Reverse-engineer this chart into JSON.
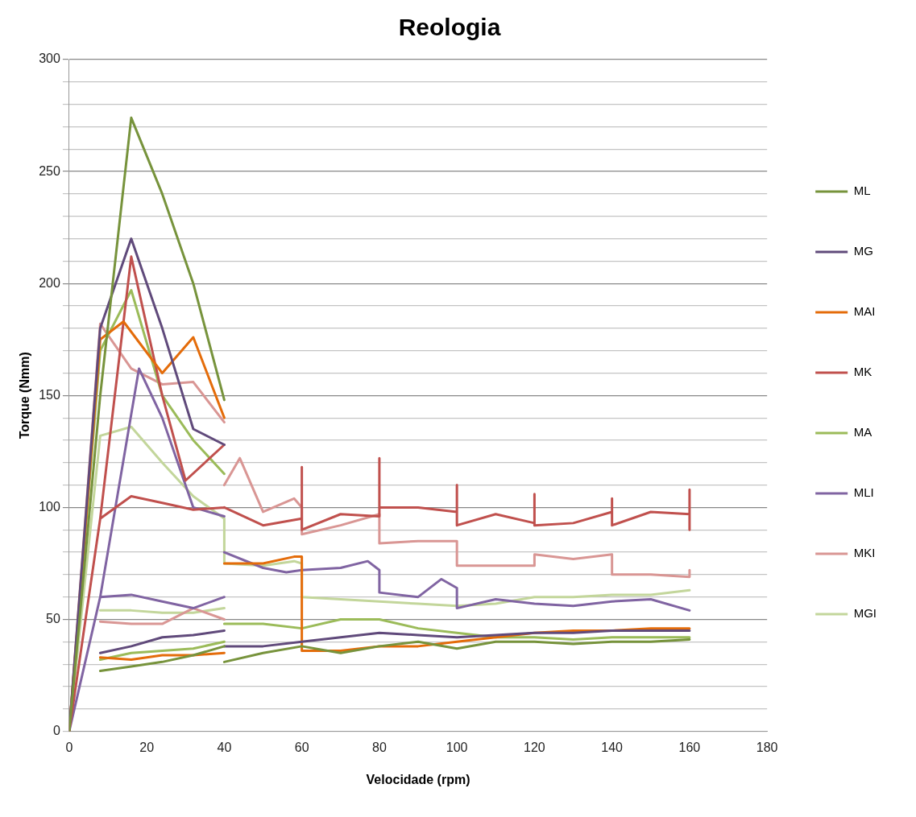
{
  "chart_data": {
    "type": "line",
    "title": "Reologia",
    "xlabel": "Velocidade (rpm)",
    "ylabel": "Torque (Nmm)",
    "xlim": [
      0,
      180
    ],
    "xticks": [
      0,
      20,
      40,
      60,
      80,
      100,
      120,
      140,
      160,
      180
    ],
    "ylim": [
      0,
      300
    ],
    "yticks": [
      0,
      {
        "value": 10,
        "label": null
      },
      {
        "value": 20,
        "label": null
      },
      {
        "value": 30,
        "label": null
      },
      {
        "value": 40,
        "label": null
      },
      50,
      {
        "value": 60,
        "label": null
      },
      {
        "value": 70,
        "label": null
      },
      {
        "value": 80,
        "label": null
      },
      {
        "value": 90,
        "label": null
      },
      100,
      {
        "value": 110,
        "label": null
      },
      {
        "value": 120,
        "label": null
      },
      {
        "value": 130,
        "label": null
      },
      {
        "value": 140,
        "label": null
      },
      150,
      {
        "value": 160,
        "label": null
      },
      {
        "value": 170,
        "label": null
      },
      {
        "value": 180,
        "label": null
      },
      {
        "value": 190,
        "label": null
      },
      200,
      {
        "value": 210,
        "label": null
      },
      {
        "value": 220,
        "label": null
      },
      {
        "value": 230,
        "label": null
      },
      {
        "value": 240,
        "label": null
      },
      250,
      {
        "value": 260,
        "label": null
      },
      {
        "value": 270,
        "label": null
      },
      {
        "value": 280,
        "label": null
      },
      {
        "value": 290,
        "label": null
      },
      300
    ],
    "grid": "y",
    "legend": "right",
    "marker": "none",
    "line_style": "solid",
    "series": [
      {
        "name": "ML",
        "color": "#77933c",
        "x": [
          0,
          8,
          16,
          24,
          32,
          40,
          null,
          8,
          16,
          24,
          32,
          40,
          null,
          40,
          50,
          60,
          70,
          80,
          90,
          100,
          110,
          120,
          130,
          140,
          150,
          160
        ],
        "values": [
          0,
          150,
          274,
          240,
          200,
          148,
          null,
          27,
          29,
          31,
          34,
          38,
          null,
          31,
          35,
          38,
          35,
          38,
          40,
          37,
          40,
          40,
          39,
          40,
          40,
          41
        ]
      },
      {
        "name": "MG",
        "color": "#604a7b",
        "x": [
          0,
          8,
          16,
          24,
          32,
          40,
          null,
          8,
          16,
          24,
          32,
          40,
          null,
          40,
          50,
          60,
          70,
          80,
          90,
          100,
          110,
          120,
          130,
          140,
          150,
          160
        ],
        "values": [
          0,
          180,
          220,
          180,
          135,
          128,
          null,
          35,
          38,
          42,
          43,
          45,
          null,
          38,
          38,
          40,
          42,
          44,
          43,
          42,
          43,
          44,
          44,
          45,
          45,
          45
        ]
      },
      {
        "name": "MAI",
        "color": "#e46c0a",
        "x": [
          0,
          8,
          14,
          24,
          32,
          40,
          null,
          8,
          16,
          24,
          32,
          40,
          null,
          40,
          50,
          58,
          60,
          60,
          70,
          80,
          90,
          100,
          110,
          120,
          130,
          140,
          150,
          160
        ],
        "values": [
          0,
          175,
          183,
          160,
          176,
          140,
          null,
          33,
          32,
          34,
          34,
          35,
          null,
          75,
          75,
          78,
          78,
          36,
          36,
          38,
          38,
          40,
          42,
          44,
          45,
          45,
          46,
          46
        ]
      },
      {
        "name": "MK",
        "color": "#c0504d",
        "x": [
          0,
          8,
          16,
          24,
          30,
          40,
          null,
          8,
          16,
          24,
          32,
          40,
          null,
          40,
          50,
          60,
          60,
          60,
          70,
          80,
          80,
          80,
          90,
          100,
          100,
          100,
          110,
          120,
          120,
          120,
          130,
          140,
          140,
          140,
          150,
          160,
          160,
          160
        ],
        "values": [
          0,
          95,
          212,
          150,
          112,
          128,
          null,
          95,
          105,
          102,
          99,
          100,
          null,
          100,
          92,
          95,
          118,
          90,
          97,
          96,
          122,
          100,
          100,
          98,
          110,
          92,
          97,
          93,
          106,
          92,
          93,
          98,
          104,
          92,
          98,
          97,
          108,
          90
        ]
      },
      {
        "name": "MA",
        "color": "#9bbb59",
        "x": [
          0,
          8,
          16,
          24,
          32,
          40,
          null,
          8,
          16,
          24,
          32,
          40,
          null,
          40,
          50,
          60,
          70,
          80,
          90,
          100,
          110,
          120,
          130,
          140,
          150,
          160
        ],
        "values": [
          0,
          170,
          197,
          150,
          130,
          115,
          null,
          32,
          35,
          36,
          37,
          40,
          null,
          48,
          48,
          46,
          50,
          50,
          46,
          44,
          42,
          42,
          41,
          42,
          42,
          42
        ]
      },
      {
        "name": "MLI",
        "color": "#8064a2",
        "x": [
          0,
          8,
          18,
          24,
          32,
          40,
          null,
          8,
          16,
          24,
          32,
          40,
          null,
          40,
          50,
          56,
          60,
          70,
          77,
          80,
          80,
          90,
          96,
          100,
          100,
          110,
          120,
          130,
          140,
          150,
          160
        ],
        "values": [
          0,
          60,
          162,
          140,
          100,
          96,
          null,
          60,
          61,
          58,
          55,
          60,
          null,
          80,
          73,
          71,
          72,
          73,
          76,
          72,
          62,
          60,
          68,
          64,
          55,
          59,
          57,
          56,
          58,
          59,
          54
        ]
      },
      {
        "name": "MKI",
        "color": "#d99694",
        "x": [
          0,
          8,
          16,
          24,
          32,
          40,
          null,
          8,
          16,
          24,
          32,
          40,
          null,
          40,
          44,
          50,
          58,
          60,
          60,
          70,
          80,
          80,
          90,
          100,
          100,
          110,
          120,
          120,
          130,
          140,
          140,
          150,
          160,
          160
        ],
        "values": [
          0,
          182,
          162,
          155,
          156,
          138,
          null,
          49,
          48,
          48,
          55,
          50,
          null,
          110,
          122,
          98,
          104,
          100,
          88,
          92,
          97,
          84,
          85,
          85,
          74,
          74,
          74,
          79,
          77,
          79,
          70,
          70,
          69,
          72
        ]
      },
      {
        "name": "MGI",
        "color": "#c3d69b",
        "x": [
          0,
          8,
          16,
          24,
          32,
          40,
          null,
          8,
          16,
          24,
          32,
          40,
          null,
          40,
          40,
          50,
          58,
          60,
          60,
          70,
          80,
          90,
          100,
          110,
          120,
          130,
          140,
          150,
          160
        ],
        "values": [
          0,
          132,
          136,
          120,
          105,
          95,
          null,
          54,
          54,
          53,
          53,
          55,
          null,
          95,
          75,
          74,
          76,
          75,
          60,
          59,
          58,
          57,
          56,
          57,
          60,
          60,
          61,
          61,
          63
        ]
      }
    ]
  }
}
